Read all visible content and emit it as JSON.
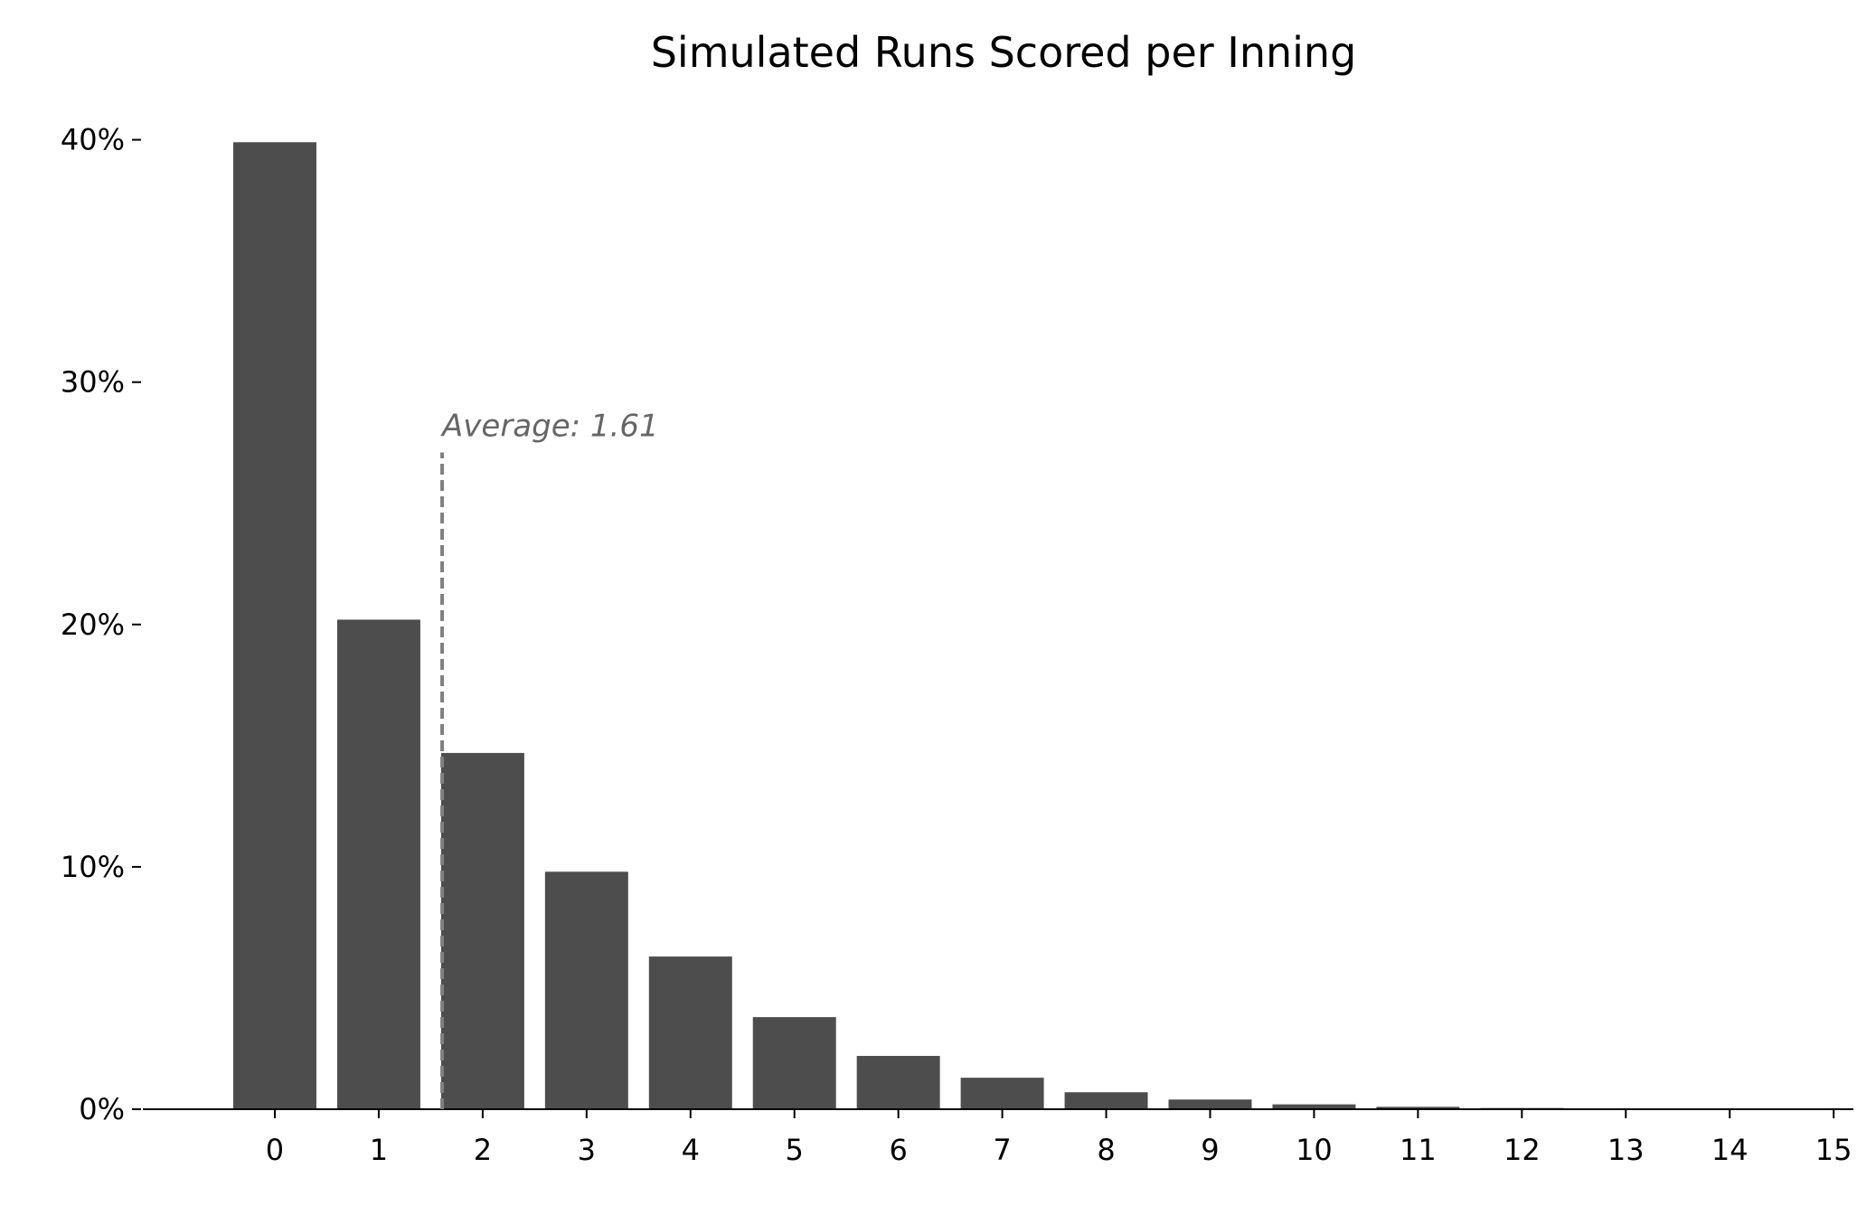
{
  "chart_data": {
    "type": "bar",
    "title": "Simulated Runs Scored per Inning",
    "x": [
      0,
      1,
      2,
      3,
      4,
      5,
      6,
      7,
      8,
      9,
      10,
      11,
      12
    ],
    "values": [
      39.9,
      20.2,
      14.7,
      9.8,
      6.3,
      3.8,
      2.2,
      1.3,
      0.7,
      0.4,
      0.2,
      0.1,
      0.05
    ],
    "color": "#4d4d4d",
    "xlim": [
      -1.27,
      15.19
    ],
    "xticks": [
      0,
      1,
      2,
      3,
      4,
      5,
      6,
      7,
      8,
      9,
      10,
      11,
      12,
      13,
      14,
      15
    ],
    "ylim": [
      0,
      42
    ],
    "yticks": [
      {
        "value": 0,
        "label": "0%"
      },
      {
        "value": 10,
        "label": "10%"
      },
      {
        "value": 20,
        "label": "20%"
      },
      {
        "value": 30,
        "label": "30%"
      },
      {
        "value": 40,
        "label": "40%"
      }
    ],
    "grid": false,
    "average": {
      "x": 1.61,
      "top": 27.1,
      "label": "Average: 1.61",
      "color": "#808080"
    }
  }
}
